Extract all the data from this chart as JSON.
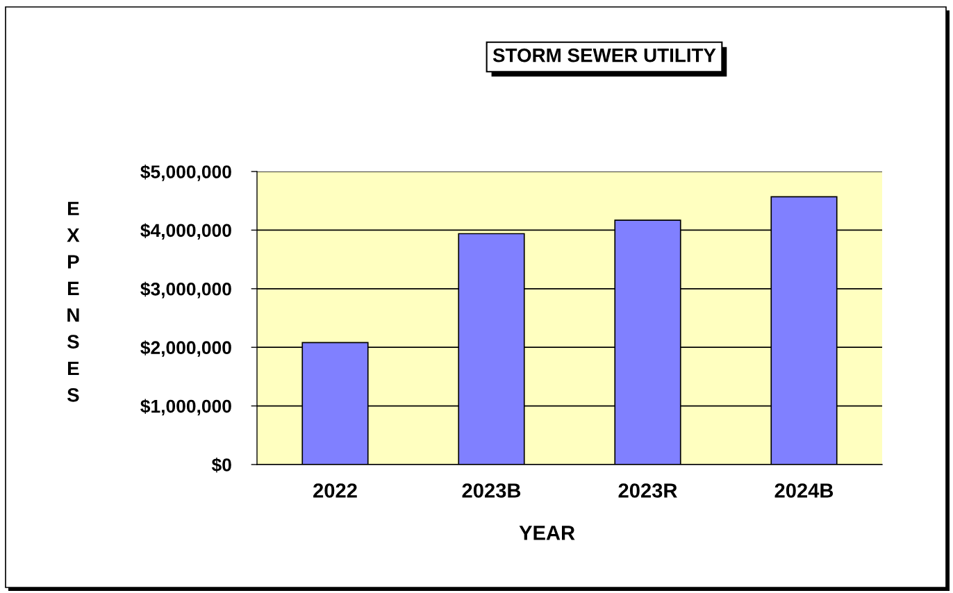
{
  "chart_data": {
    "type": "bar",
    "title": "STORM SEWER UTILITY",
    "xlabel": "YEAR",
    "ylabel": "EXPENSES",
    "categories": [
      "2022",
      "2023B",
      "2023R",
      "2024B"
    ],
    "values": [
      2080000,
      3940000,
      4170000,
      4570000
    ],
    "color": "#8080ff",
    "ylim": [
      0,
      5000000
    ],
    "yticks": [
      {
        "value": 0,
        "label": "$0"
      },
      {
        "value": 1000000,
        "label": "$1,000,000"
      },
      {
        "value": 2000000,
        "label": "$2,000,000"
      },
      {
        "value": 3000000,
        "label": "$3,000,000"
      },
      {
        "value": 4000000,
        "label": "$4,000,000"
      },
      {
        "value": 5000000,
        "label": "$5,000,000"
      }
    ],
    "grid": "y"
  }
}
